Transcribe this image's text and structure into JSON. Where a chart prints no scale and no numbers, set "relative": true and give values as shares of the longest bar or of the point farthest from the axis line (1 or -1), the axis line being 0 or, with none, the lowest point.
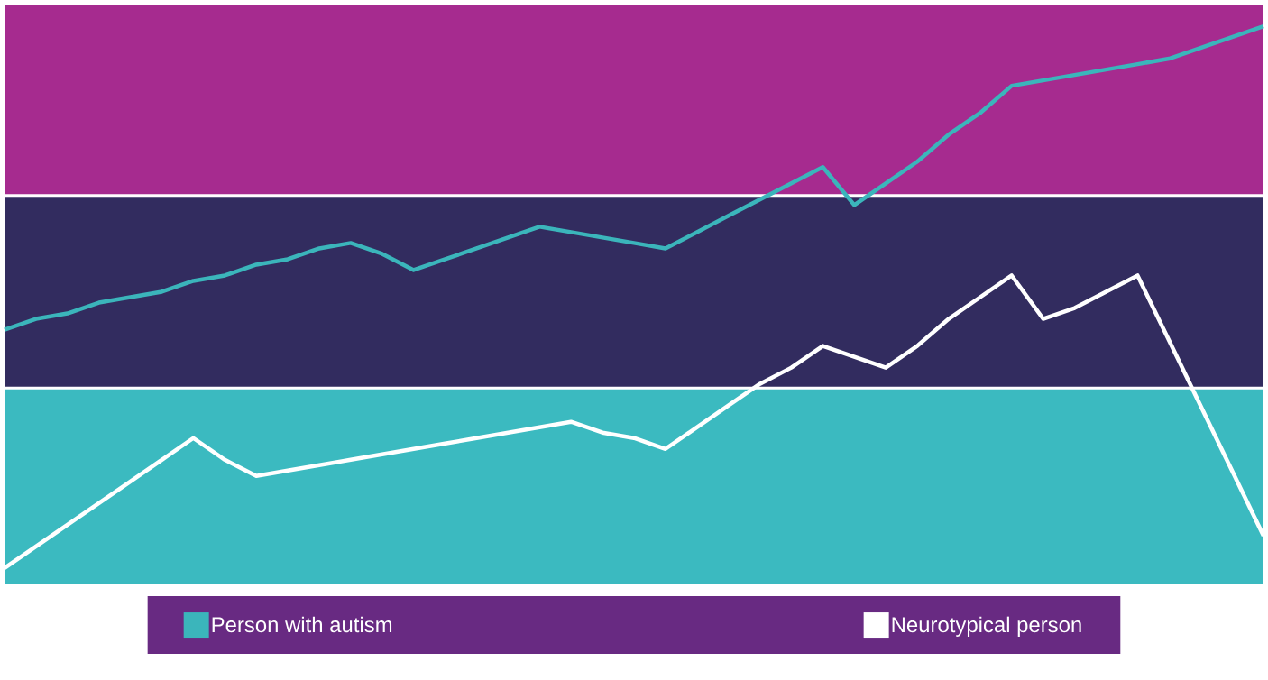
{
  "chart_data": {
    "type": "line",
    "relative": true,
    "legend": "bottom",
    "line_style": "solid",
    "marker": "none",
    "categories": [
      null,
      null,
      null,
      null,
      null,
      null,
      null,
      null,
      null,
      null,
      null,
      null,
      null,
      null,
      null,
      null,
      null,
      null,
      null,
      null,
      null,
      null,
      null,
      null,
      null,
      null,
      null,
      null,
      null,
      null,
      null,
      null,
      null,
      null,
      null,
      null,
      null,
      null,
      null,
      null,
      null
    ],
    "series": [
      {
        "name": "Person with autism",
        "color": "#3bb5bb",
        "values": [
          0.44,
          0.46,
          0.47,
          0.49,
          0.5,
          0.51,
          0.53,
          0.54,
          0.56,
          0.57,
          0.59,
          0.6,
          0.58,
          0.55,
          0.57,
          0.59,
          0.61,
          0.63,
          0.62,
          0.61,
          0.6,
          0.59,
          0.62,
          0.65,
          0.68,
          0.71,
          0.74,
          0.67,
          0.71,
          0.75,
          0.8,
          0.84,
          0.89,
          0.9,
          0.91,
          0.92,
          0.93,
          0.94,
          0.96,
          0.98,
          1.0
        ]
      },
      {
        "name": "Neurotypical person",
        "color": "#ffffff",
        "values": [
          0.0,
          0.04,
          0.08,
          0.12,
          0.16,
          0.2,
          0.24,
          0.2,
          0.17,
          0.18,
          0.19,
          0.2,
          0.21,
          0.22,
          0.23,
          0.24,
          0.25,
          0.26,
          0.27,
          0.25,
          0.24,
          0.22,
          0.26,
          0.3,
          0.34,
          0.37,
          0.41,
          0.39,
          0.37,
          0.41,
          0.46,
          0.5,
          0.54,
          0.46,
          0.48,
          0.51,
          0.54,
          0.42,
          0.3,
          0.18,
          0.06
        ]
      }
    ],
    "bands": [
      {
        "axis": "y",
        "from": -0.03,
        "to": 0.33,
        "color": "#3bbac0"
      },
      {
        "axis": "y",
        "from": 0.335,
        "to": 0.685,
        "color": "#322c5f"
      },
      {
        "axis": "y",
        "from": 0.69,
        "to": 1.04,
        "color": "#a62b8f"
      }
    ]
  }
}
